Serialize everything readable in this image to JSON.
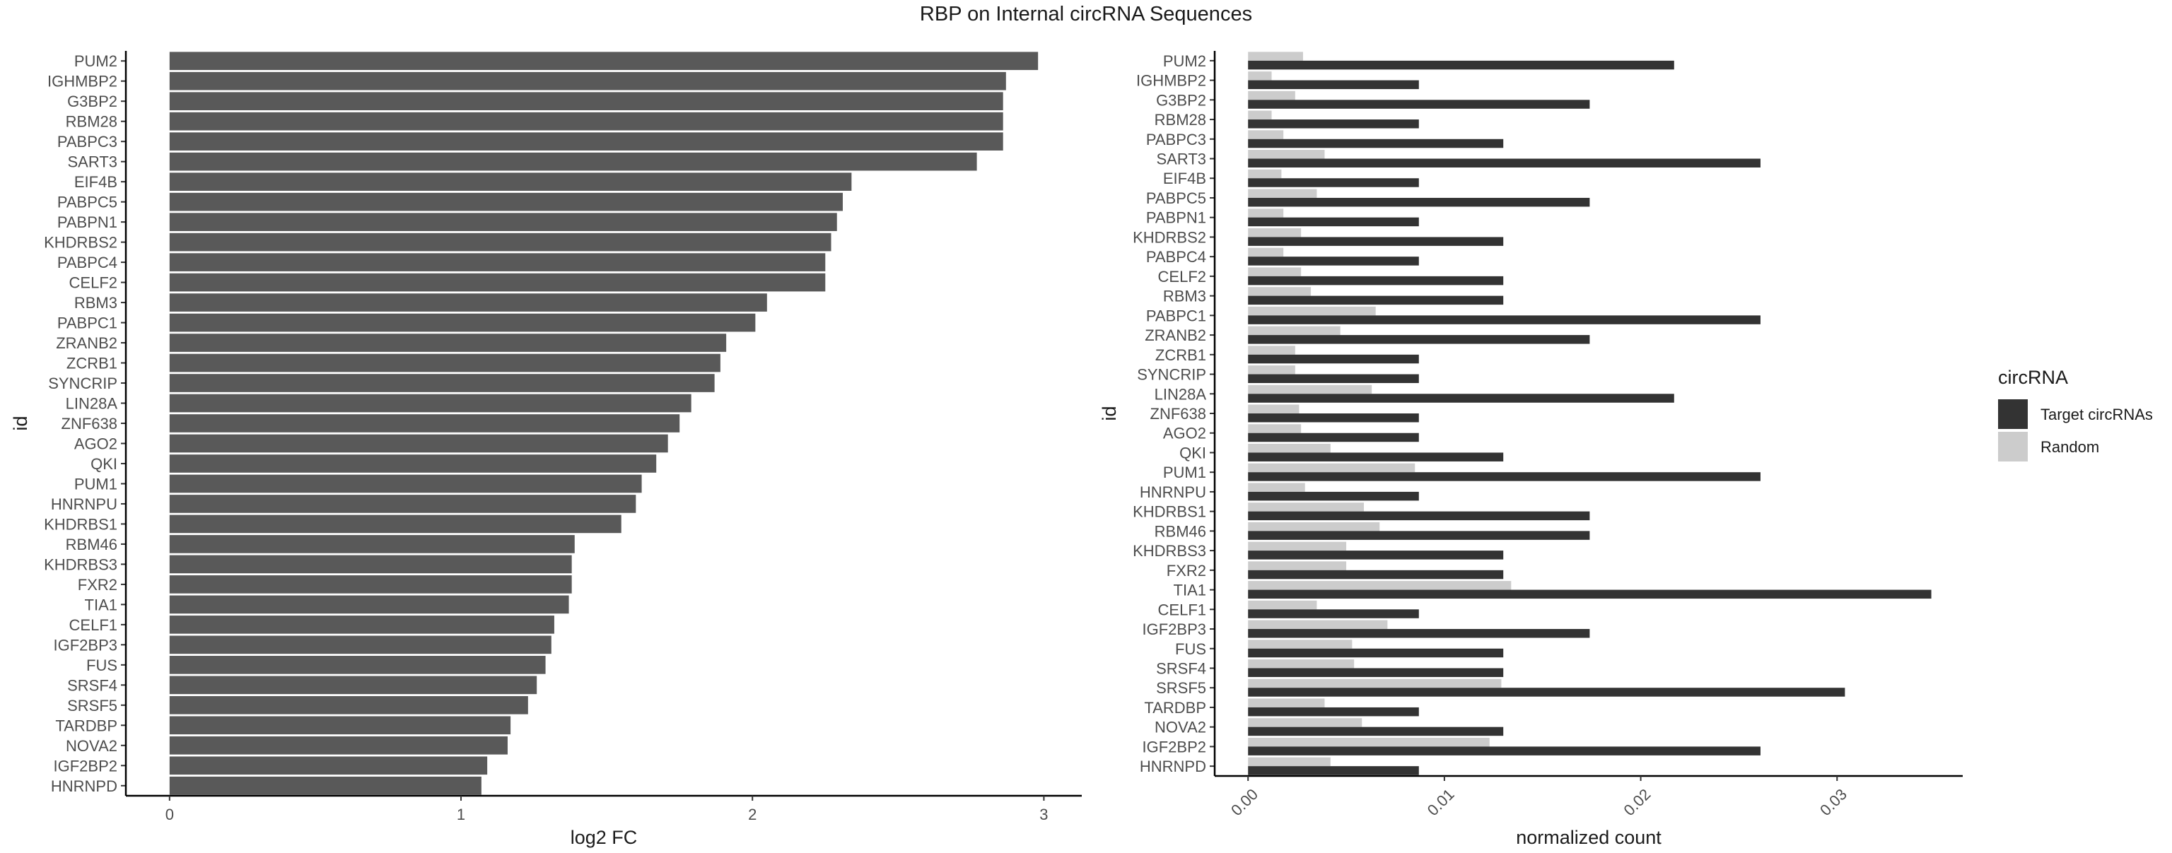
{
  "title": "RBP on Internal circRNA Sequences",
  "colors": {
    "fc_bar": "#595959",
    "target": "#333333",
    "random": "#cccccc",
    "axis": "#000000",
    "tick_text": "#4d4d4d"
  },
  "chart_data": [
    {
      "type": "bar",
      "orientation": "horizontal",
      "ylabel": "id",
      "xlabel": "log2 FC",
      "xlim": [
        -0.15,
        3.13
      ],
      "xticks": [
        0,
        1,
        2,
        3
      ],
      "grid": false,
      "categories": [
        "PUM2",
        "IGHMBP2",
        "G3BP2",
        "RBM28",
        "PABPC3",
        "SART3",
        "EIF4B",
        "PABPC5",
        "PABPN1",
        "KHDRBS2",
        "PABPC4",
        "CELF2",
        "RBM3",
        "PABPC1",
        "ZRANB2",
        "ZCRB1",
        "SYNCRIP",
        "LIN28A",
        "ZNF638",
        "AGO2",
        "QKI",
        "PUM1",
        "HNRNPU",
        "KHDRBS1",
        "RBM46",
        "KHDRBS3",
        "FXR2",
        "TIA1",
        "CELF1",
        "IGF2BP3",
        "FUS",
        "SRSF4",
        "SRSF5",
        "TARDBP",
        "NOVA2",
        "IGF2BP2",
        "HNRNPD"
      ],
      "values": [
        2.98,
        2.87,
        2.86,
        2.86,
        2.86,
        2.77,
        2.34,
        2.31,
        2.29,
        2.27,
        2.25,
        2.25,
        2.05,
        2.01,
        1.91,
        1.89,
        1.87,
        1.79,
        1.75,
        1.71,
        1.67,
        1.62,
        1.6,
        1.55,
        1.39,
        1.38,
        1.38,
        1.37,
        1.32,
        1.31,
        1.29,
        1.26,
        1.23,
        1.17,
        1.16,
        1.09,
        1.07
      ]
    },
    {
      "type": "bar",
      "orientation": "horizontal",
      "grouped": true,
      "ylabel": "id",
      "xlabel": "normalized count",
      "xlim": [
        -0.0017,
        0.0364
      ],
      "xticks": [
        0.0,
        0.01,
        0.02,
        0.03
      ],
      "xtick_labels": [
        "0.00",
        "0.01",
        "0.02",
        "0.03"
      ],
      "grid": false,
      "categories": [
        "PUM2",
        "IGHMBP2",
        "G3BP2",
        "RBM28",
        "PABPC3",
        "SART3",
        "EIF4B",
        "PABPC5",
        "PABPN1",
        "KHDRBS2",
        "PABPC4",
        "CELF2",
        "RBM3",
        "PABPC1",
        "ZRANB2",
        "ZCRB1",
        "SYNCRIP",
        "LIN28A",
        "ZNF638",
        "AGO2",
        "QKI",
        "PUM1",
        "HNRNPU",
        "KHDRBS1",
        "RBM46",
        "KHDRBS3",
        "FXR2",
        "TIA1",
        "CELF1",
        "IGF2BP3",
        "FUS",
        "SRSF4",
        "SRSF5",
        "TARDBP",
        "NOVA2",
        "IGF2BP2",
        "HNRNPD"
      ],
      "legend": {
        "title": "circRNA",
        "position": "right"
      },
      "series": [
        {
          "name": "Target circRNAs",
          "color": "#333333",
          "values": [
            0.0217,
            0.0087,
            0.0174,
            0.0087,
            0.013,
            0.0261,
            0.0087,
            0.0174,
            0.0087,
            0.013,
            0.0087,
            0.013,
            0.013,
            0.0261,
            0.0174,
            0.0087,
            0.0087,
            0.0217,
            0.0087,
            0.0087,
            0.013,
            0.0261,
            0.0087,
            0.0174,
            0.0174,
            0.013,
            0.013,
            0.0348,
            0.0087,
            0.0174,
            0.013,
            0.013,
            0.0304,
            0.0087,
            0.013,
            0.0261,
            0.0087
          ]
        },
        {
          "name": "Random",
          "color": "#cccccc",
          "values": [
            0.0028,
            0.0012,
            0.0024,
            0.0012,
            0.0018,
            0.0039,
            0.0017,
            0.0035,
            0.0018,
            0.0027,
            0.0018,
            0.0027,
            0.0032,
            0.0065,
            0.0047,
            0.0024,
            0.0024,
            0.0063,
            0.0026,
            0.0027,
            0.0042,
            0.0085,
            0.0029,
            0.0059,
            0.0067,
            0.005,
            0.005,
            0.0134,
            0.0035,
            0.0071,
            0.0053,
            0.0054,
            0.0129,
            0.0039,
            0.0058,
            0.0123,
            0.0042
          ]
        }
      ]
    }
  ]
}
